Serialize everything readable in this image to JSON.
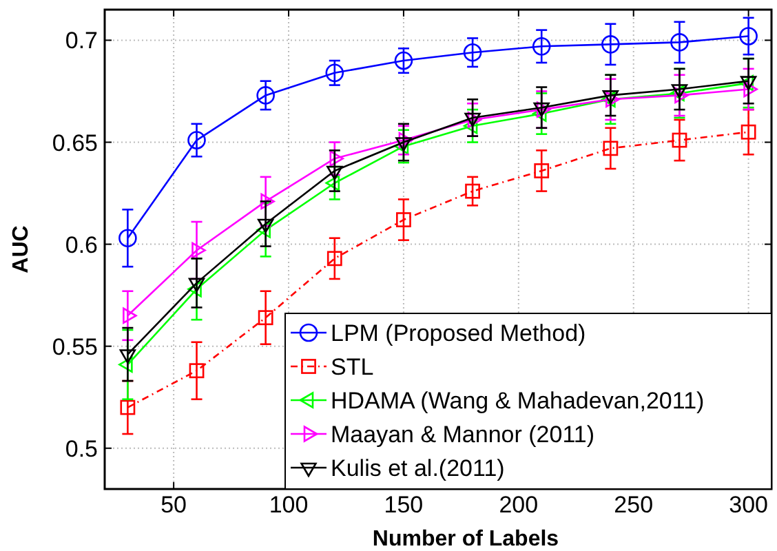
{
  "chart_data": {
    "type": "line",
    "xlabel": "Number of Labels",
    "ylabel": "AUC",
    "x": [
      30,
      60,
      90,
      120,
      150,
      180,
      210,
      240,
      270,
      300
    ],
    "xlim": [
      20,
      310
    ],
    "xticks": [
      50,
      100,
      150,
      200,
      250,
      300
    ],
    "ylim": [
      0.48,
      0.715
    ],
    "yticks": [
      0.5,
      0.55,
      0.6,
      0.65,
      0.7
    ],
    "grid": true,
    "legend": "bottom right",
    "series": [
      {
        "name": "LPM (Proposed Method)",
        "color": "#0000ff",
        "marker": "circle",
        "line_style": "solid",
        "values": [
          0.603,
          0.651,
          0.673,
          0.684,
          0.69,
          0.694,
          0.697,
          0.698,
          0.699,
          0.702
        ],
        "errors": [
          0.014,
          0.008,
          0.007,
          0.006,
          0.006,
          0.007,
          0.008,
          0.01,
          0.01,
          0.009
        ]
      },
      {
        "name": "STL",
        "color": "#ff0000",
        "marker": "square",
        "line_style": "dashed",
        "values": [
          0.52,
          0.538,
          0.564,
          0.593,
          0.612,
          0.626,
          0.636,
          0.647,
          0.651,
          0.655
        ],
        "errors": [
          0.013,
          0.014,
          0.013,
          0.01,
          0.01,
          0.007,
          0.01,
          0.01,
          0.01,
          0.011
        ]
      },
      {
        "name": "HDAMA (Wang & Mahadevan,2011)",
        "color": "#00ff00",
        "marker": "triangle-left",
        "line_style": "solid",
        "values": [
          0.541,
          0.578,
          0.607,
          0.63,
          0.648,
          0.658,
          0.664,
          0.671,
          0.674,
          0.679
        ],
        "errors": [
          0.017,
          0.015,
          0.013,
          0.008,
          0.008,
          0.008,
          0.01,
          0.012,
          0.012,
          0.012
        ]
      },
      {
        "name": "Maayan & Mannor (2011)",
        "color": "#ff00ff",
        "marker": "triangle-right",
        "line_style": "solid",
        "values": [
          0.565,
          0.597,
          0.621,
          0.642,
          0.651,
          0.661,
          0.666,
          0.671,
          0.673,
          0.676
        ],
        "errors": [
          0.012,
          0.014,
          0.012,
          0.008,
          0.007,
          0.008,
          0.009,
          0.01,
          0.01,
          0.01
        ]
      },
      {
        "name": "Kulis et al.(2011)",
        "color": "#000000",
        "marker": "triangle-down",
        "line_style": "solid",
        "values": [
          0.546,
          0.581,
          0.61,
          0.636,
          0.65,
          0.662,
          0.667,
          0.673,
          0.676,
          0.68
        ],
        "errors": [
          0.013,
          0.012,
          0.011,
          0.01,
          0.009,
          0.009,
          0.01,
          0.01,
          0.01,
          0.011
        ]
      }
    ]
  }
}
